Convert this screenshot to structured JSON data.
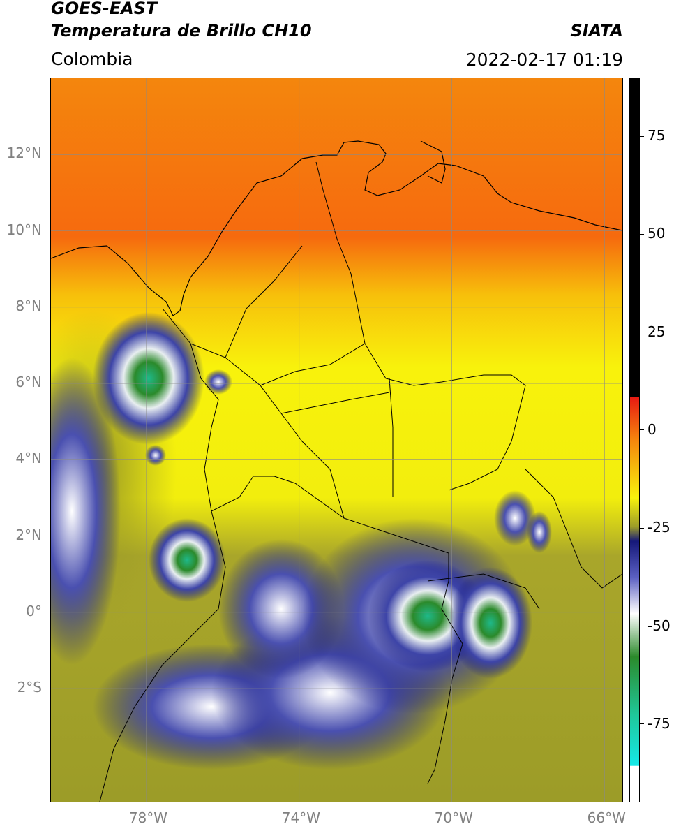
{
  "header": {
    "satellite": "GOES-EAST",
    "product": "Temperatura de Brillo CH10",
    "region": "Colombia",
    "brand": "SIATA",
    "datetime": "2022-02-17 01:19"
  },
  "map": {
    "lon_range": [
      -80.5,
      -65.5
    ],
    "lat_range": [
      -5,
      14
    ],
    "lon_ticks": [
      {
        "value": -78,
        "label": "78°W"
      },
      {
        "value": -74,
        "label": "74°W"
      },
      {
        "value": -70,
        "label": "70°W"
      },
      {
        "value": -66,
        "label": "66°W"
      }
    ],
    "lat_ticks": [
      {
        "value": 12,
        "label": "12°N"
      },
      {
        "value": 10,
        "label": "10°N"
      },
      {
        "value": 8,
        "label": "8°N"
      },
      {
        "value": 6,
        "label": "6°N"
      },
      {
        "value": 4,
        "label": "4°N"
      },
      {
        "value": 2,
        "label": "2°N"
      },
      {
        "value": 0,
        "label": "0°"
      },
      {
        "value": -2,
        "label": "2°S"
      }
    ],
    "grid": true
  },
  "colorbar": {
    "range": [
      -95,
      90
    ],
    "ticks": [
      {
        "value": 75,
        "label": "75"
      },
      {
        "value": 50,
        "label": "50"
      },
      {
        "value": 25,
        "label": "25"
      },
      {
        "value": 0,
        "label": "0"
      },
      {
        "value": -25,
        "label": "-25"
      },
      {
        "value": -50,
        "label": "-50"
      },
      {
        "value": -75,
        "label": "-75"
      }
    ],
    "colors": {
      "black": "#000000",
      "red": "#e81a12",
      "orange": "#f5860d",
      "yellow": "#f8f20c",
      "olive": "#9c9c28",
      "navy": "#15187a",
      "white": "#ffffff",
      "green": "#2b8a2b",
      "teal": "#1fc79a",
      "cyan": "#15e8e8"
    }
  }
}
